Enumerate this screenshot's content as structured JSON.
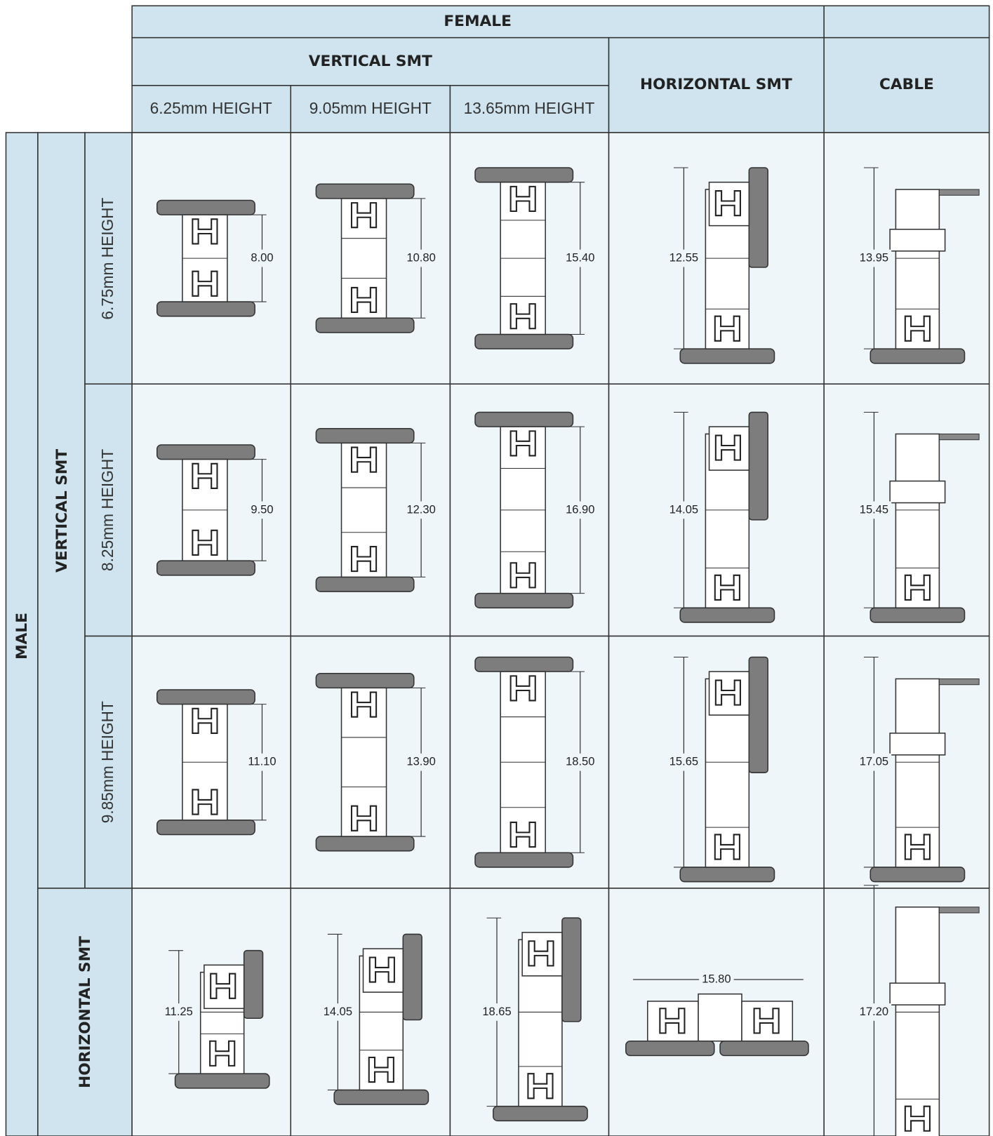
{
  "header": {
    "female": "FEMALE",
    "vertical_smt": "VERTICAL SMT",
    "horizontal_smt": "HORIZONTAL SMT",
    "cable": "CABLE",
    "heights": [
      "6.25mm HEIGHT",
      "9.05mm HEIGHT",
      "13.65mm HEIGHT"
    ]
  },
  "side": {
    "male": "MALE",
    "vertical_smt": "VERTICAL SMT",
    "horizontal_smt": "HORIZONTAL SMT",
    "heights": [
      "6.75mm HEIGHT",
      "8.25mm HEIGHT",
      "9.85mm HEIGHT"
    ]
  },
  "table": {
    "rows": [
      [
        "8.00",
        "10.80",
        "15.40",
        "12.55",
        "13.95"
      ],
      [
        "9.50",
        "12.30",
        "16.90",
        "14.05",
        "15.45"
      ],
      [
        "11.10",
        "13.90",
        "18.50",
        "15.65",
        "17.05"
      ],
      [
        "11.25",
        "14.05",
        "18.65",
        "15.80",
        "17.20"
      ]
    ]
  }
}
